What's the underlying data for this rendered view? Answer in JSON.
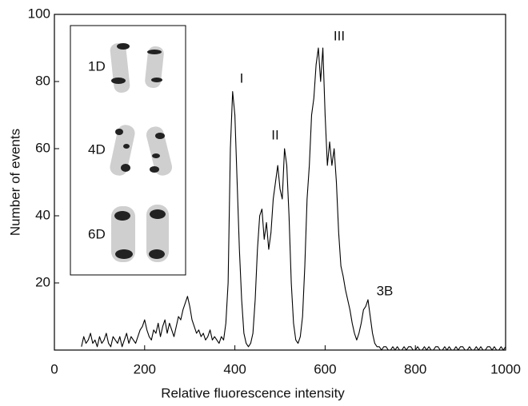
{
  "chart_data": {
    "type": "line",
    "xlabel": "Relative fluorescence intensity",
    "ylabel": "Number of events",
    "xlim": [
      0,
      1000
    ],
    "ylim": [
      0,
      100
    ],
    "xticks": [
      0,
      200,
      400,
      600,
      800,
      1000
    ],
    "yticks": [
      20,
      40,
      60,
      80,
      100
    ],
    "color": "#000000",
    "annotations": [
      "I",
      "II",
      "III",
      "3B"
    ],
    "inset_labels": [
      "1D",
      "4D",
      "6D"
    ],
    "x": [
      60,
      65,
      70,
      75,
      80,
      85,
      90,
      95,
      100,
      105,
      110,
      115,
      120,
      125,
      130,
      135,
      140,
      145,
      150,
      155,
      160,
      165,
      170,
      175,
      180,
      185,
      190,
      195,
      200,
      205,
      210,
      215,
      220,
      225,
      230,
      235,
      240,
      245,
      250,
      255,
      260,
      265,
      270,
      275,
      280,
      285,
      290,
      295,
      300,
      305,
      310,
      315,
      320,
      325,
      330,
      335,
      340,
      345,
      350,
      355,
      360,
      365,
      370,
      375,
      380,
      385,
      390,
      395,
      400,
      405,
      410,
      415,
      420,
      425,
      430,
      435,
      440,
      445,
      450,
      455,
      460,
      465,
      470,
      475,
      480,
      485,
      490,
      495,
      500,
      505,
      510,
      515,
      520,
      525,
      530,
      535,
      540,
      545,
      550,
      555,
      560,
      565,
      570,
      575,
      580,
      585,
      590,
      595,
      600,
      605,
      610,
      615,
      620,
      625,
      630,
      635,
      640,
      645,
      650,
      655,
      660,
      665,
      670,
      675,
      680,
      685,
      690,
      695,
      700,
      705,
      710,
      715,
      720,
      725,
      730,
      735,
      740,
      745,
      750,
      755,
      760,
      765,
      770,
      775,
      780,
      785,
      790,
      795,
      800,
      805,
      810,
      815,
      820,
      825,
      830,
      835,
      840,
      845,
      850,
      855,
      860,
      865,
      870,
      875,
      880,
      885,
      890,
      895,
      900,
      905,
      910,
      915,
      920,
      925,
      930,
      935,
      940,
      945,
      950,
      955,
      960,
      965,
      970,
      975,
      980,
      985,
      990,
      995,
      1000
    ],
    "values": [
      1,
      4,
      2,
      3,
      5,
      2,
      3,
      1,
      4,
      2,
      3,
      5,
      2,
      1,
      4,
      3,
      2,
      4,
      1,
      3,
      5,
      2,
      4,
      3,
      2,
      4,
      6,
      7,
      9,
      6,
      4,
      3,
      6,
      5,
      8,
      4,
      7,
      9,
      5,
      8,
      6,
      4,
      7,
      10,
      9,
      12,
      14,
      16,
      13,
      9,
      7,
      5,
      6,
      4,
      5,
      3,
      4,
      6,
      3,
      4,
      3,
      2,
      4,
      3,
      8,
      20,
      60,
      77,
      70,
      50,
      30,
      15,
      5,
      2,
      1,
      2,
      5,
      15,
      30,
      40,
      42,
      33,
      38,
      30,
      35,
      45,
      50,
      55,
      48,
      45,
      60,
      55,
      40,
      20,
      8,
      3,
      2,
      4,
      10,
      25,
      45,
      55,
      70,
      75,
      85,
      90,
      80,
      90,
      70,
      55,
      62,
      55,
      60,
      50,
      35,
      25,
      22,
      18,
      15,
      12,
      8,
      5,
      3,
      5,
      8,
      12,
      13,
      15,
      10,
      5,
      2,
      1,
      1,
      0,
      1,
      1,
      0,
      0,
      1,
      0,
      1,
      0,
      0,
      1,
      0,
      1,
      1,
      0,
      0,
      1,
      0,
      0,
      1,
      0,
      1,
      0,
      0,
      1,
      1,
      0,
      0,
      1,
      0,
      1,
      0,
      0,
      1,
      0,
      1,
      1,
      0,
      0,
      1,
      0,
      0,
      1,
      0,
      1,
      0,
      0,
      1,
      1,
      0,
      1,
      0,
      0,
      1,
      0,
      1
    ]
  }
}
